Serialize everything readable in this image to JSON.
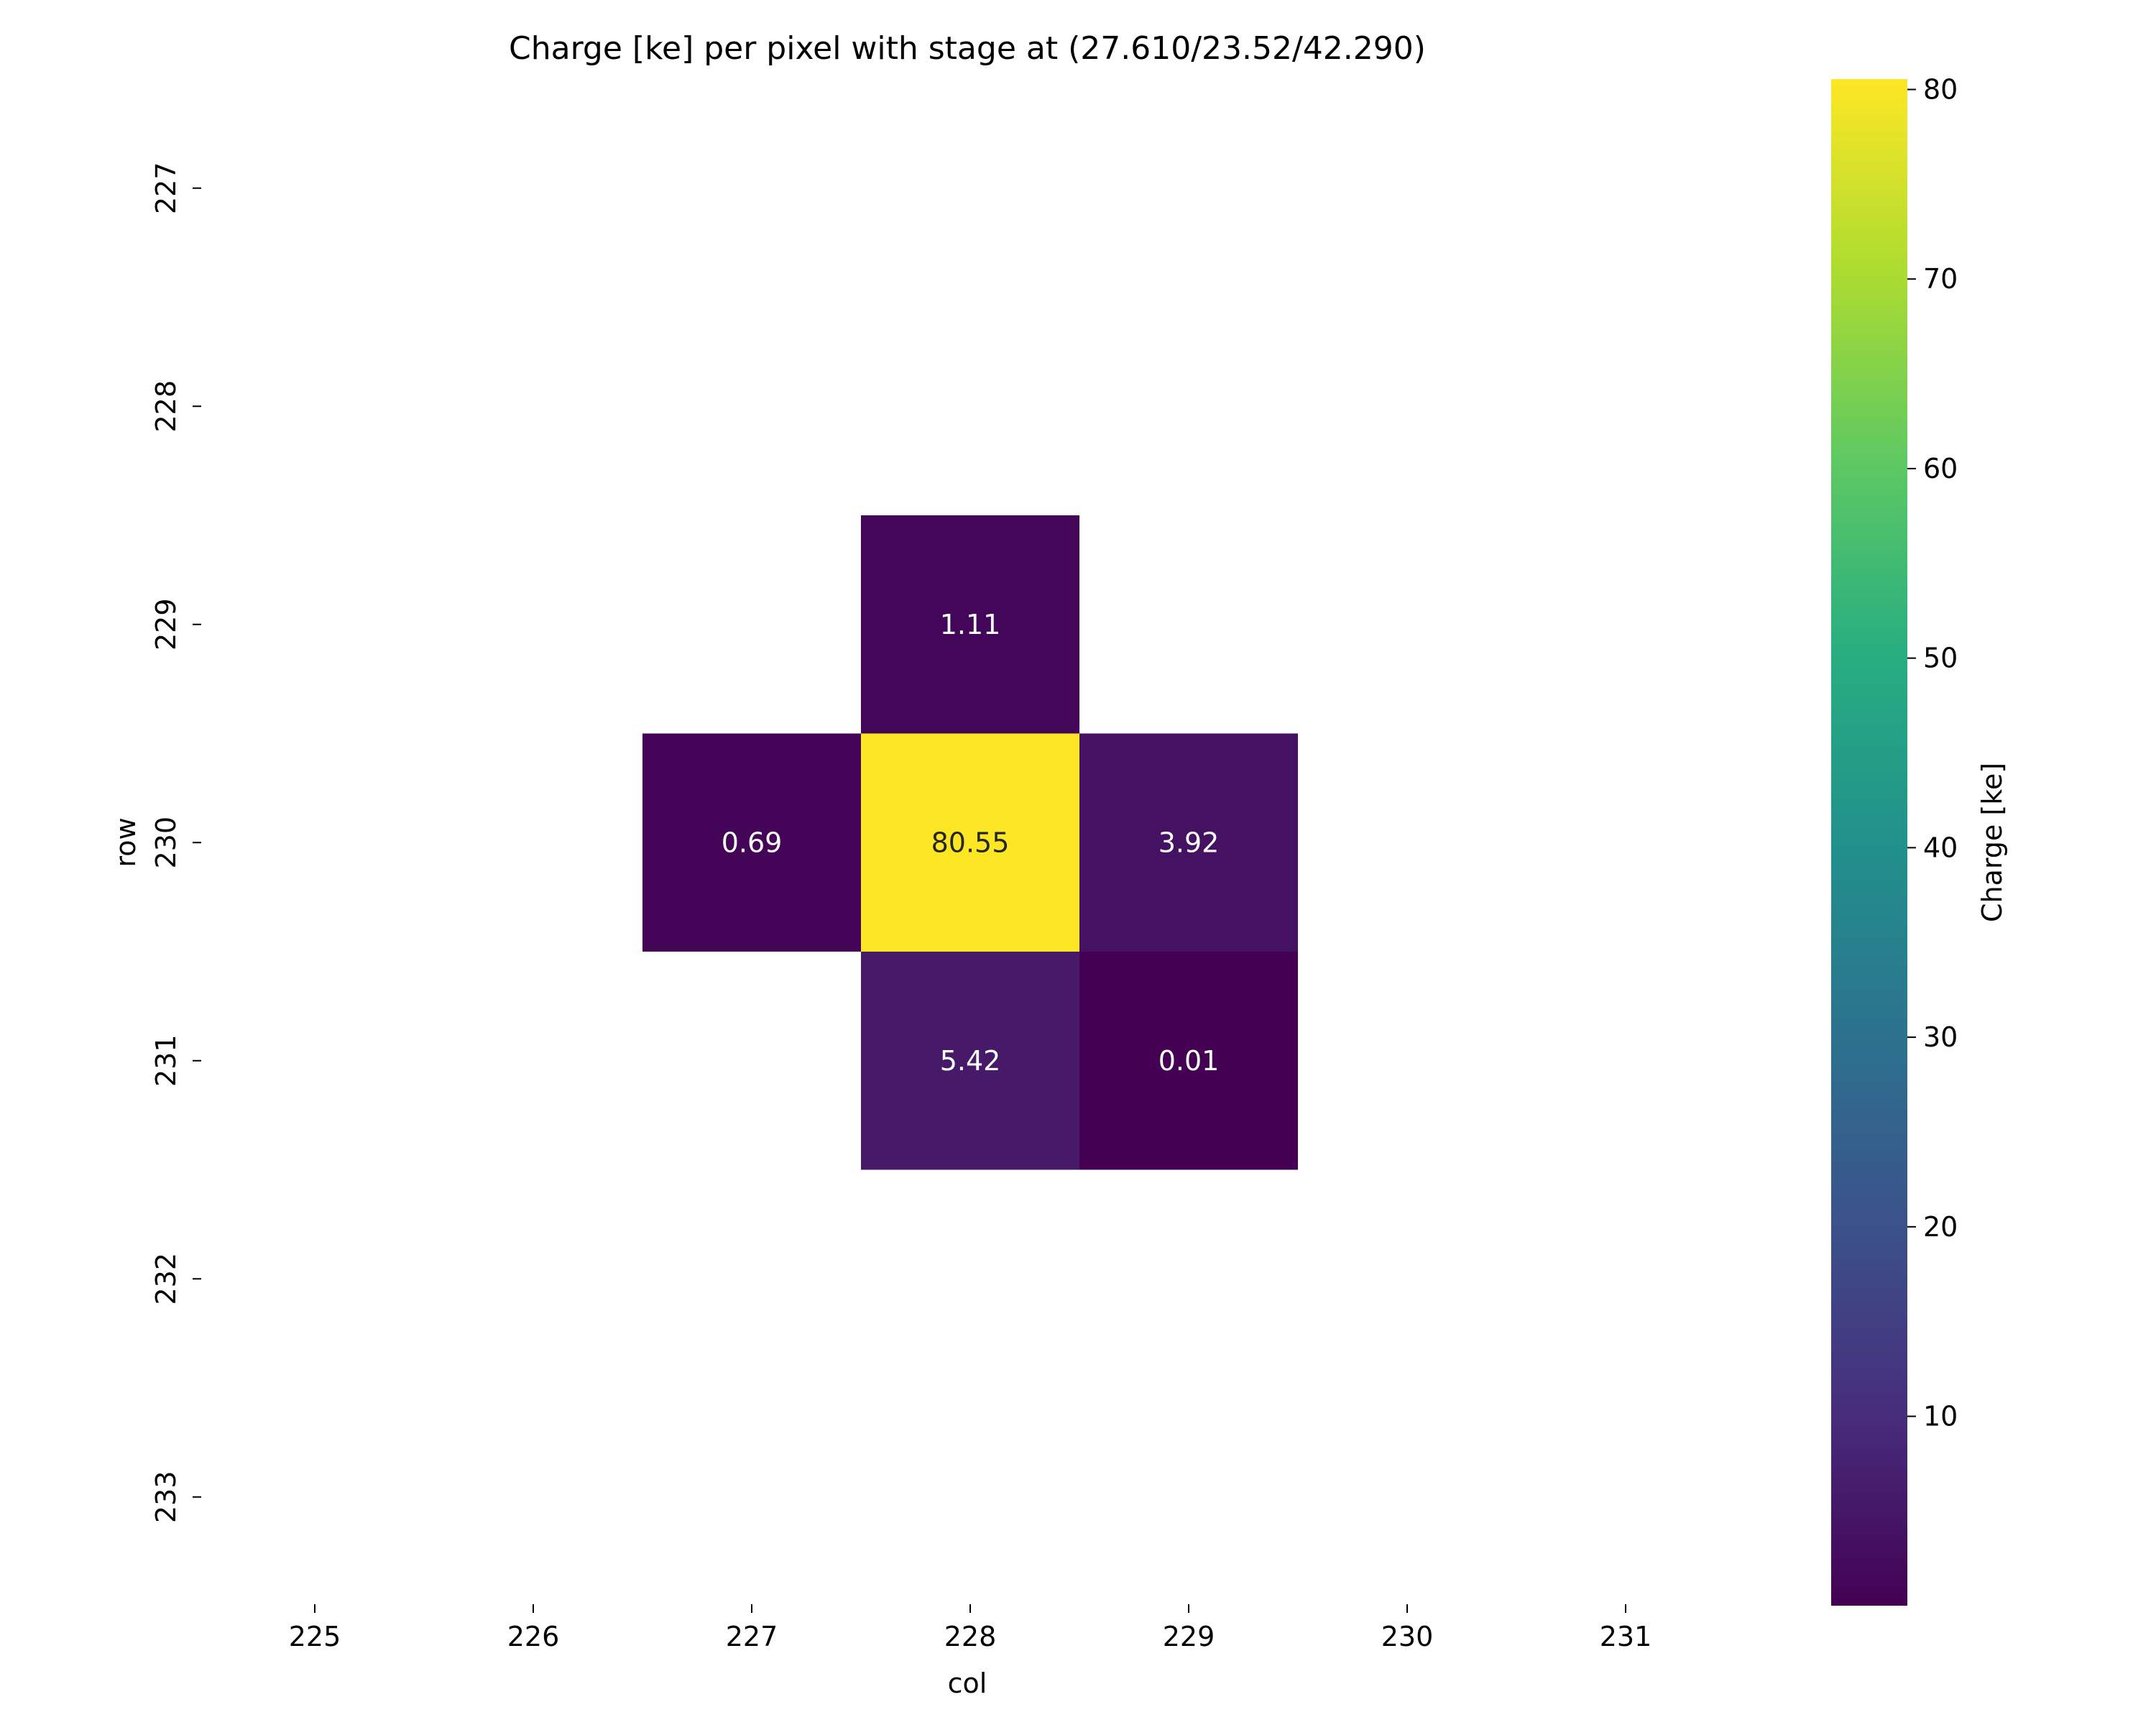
{
  "chart_data": {
    "type": "heatmap",
    "title": "Charge [ke] per pixel with stage at (27.610/23.52/42.290)",
    "xlabel": "col",
    "ylabel": "row",
    "x_categories": [
      "225",
      "226",
      "227",
      "228",
      "229",
      "230",
      "231"
    ],
    "y_categories": [
      "227",
      "228",
      "229",
      "230",
      "231",
      "232",
      "233"
    ],
    "cells": [
      {
        "col": "228",
        "row": "229",
        "value": 1.11,
        "label": "1.11"
      },
      {
        "col": "227",
        "row": "230",
        "value": 0.69,
        "label": "0.69"
      },
      {
        "col": "228",
        "row": "230",
        "value": 80.55,
        "label": "80.55"
      },
      {
        "col": "229",
        "row": "230",
        "value": 3.92,
        "label": "3.92"
      },
      {
        "col": "228",
        "row": "231",
        "value": 5.42,
        "label": "5.42"
      },
      {
        "col": "229",
        "row": "231",
        "value": 0.01,
        "label": "0.01"
      }
    ],
    "colorbar": {
      "label": "Charge [ke]",
      "colormap": "viridis",
      "range": [
        0.01,
        80.55
      ],
      "ticks": [
        10,
        20,
        30,
        40,
        50,
        60,
        70,
        80
      ],
      "tick_labels": [
        "10",
        "20",
        "30",
        "40",
        "50",
        "60",
        "70",
        "80"
      ]
    },
    "grid": false
  }
}
